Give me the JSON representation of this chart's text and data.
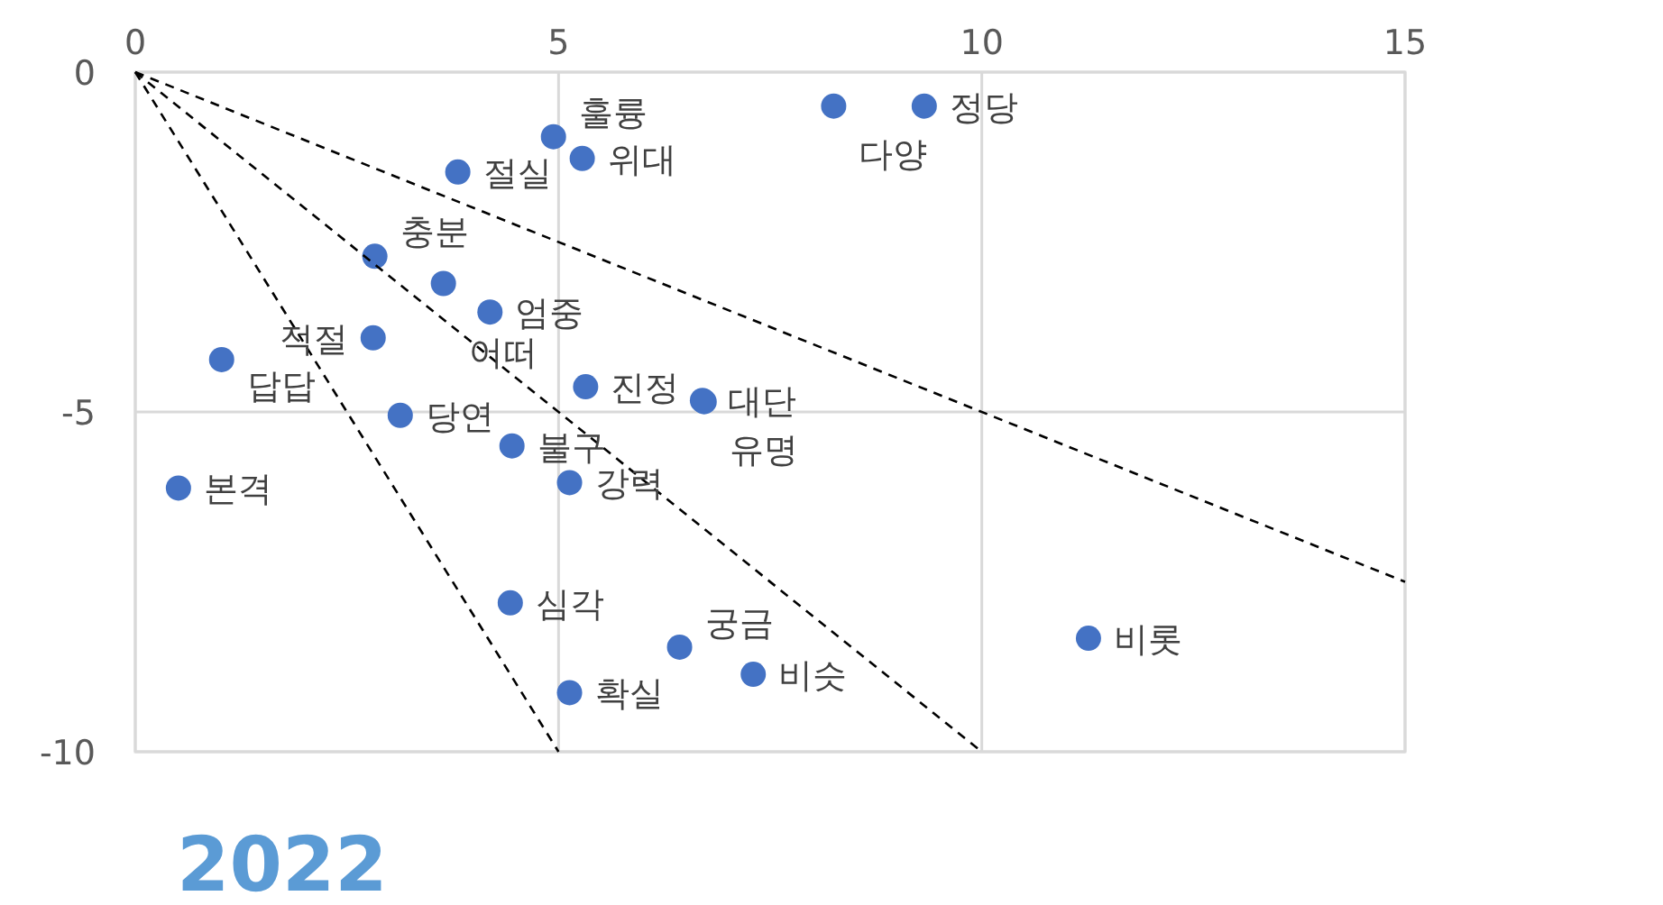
{
  "chart_data": {
    "type": "scatter",
    "title": "2022",
    "xlim": [
      0,
      15
    ],
    "ylim": [
      -10,
      0
    ],
    "xticks": [
      0,
      5,
      10,
      15
    ],
    "yticks": [
      -10,
      -5,
      0
    ],
    "grid": true,
    "marker": "circle",
    "series": [
      {
        "color": "#4472c4",
        "x": [
          8.25,
          9.32,
          4.94,
          5.28,
          3.81,
          2.83,
          3.64,
          4.19,
          2.81,
          1.02,
          5.32,
          6.7,
          6.72,
          3.13,
          4.45,
          5.13,
          0.51,
          4.43,
          6.43,
          7.3,
          5.13,
          11.26
        ],
        "values": [
          -0.5,
          -0.5,
          -0.95,
          -1.27,
          -1.47,
          -2.71,
          -3.11,
          -3.53,
          -3.91,
          -4.23,
          -4.63,
          -4.83,
          -4.85,
          -5.05,
          -5.5,
          -6.04,
          -6.12,
          -7.81,
          -8.46,
          -8.86,
          -9.13,
          -8.33
        ]
      },
      {
        "type": "line",
        "color": "#000000",
        "line_style": "dashed",
        "marker": "none",
        "x": [
          0,
          5
        ],
        "values": [
          0,
          -10
        ]
      },
      {
        "type": "line",
        "color": "#000000",
        "line_style": "dashed",
        "marker": "none",
        "x": [
          0,
          10
        ],
        "values": [
          0,
          -10
        ]
      },
      {
        "type": "line",
        "color": "#000000",
        "line_style": "dashed",
        "marker": "none",
        "x": [
          0,
          15
        ],
        "values": [
          0,
          -7.5
        ]
      }
    ],
    "annotations": [
      {
        "text": "다양",
        "x": 8.25,
        "y": -0.5
      },
      {
        "text": "정당",
        "x": 9.32,
        "y": -0.5
      },
      {
        "text": "훌륭",
        "x": 4.94,
        "y": -0.95
      },
      {
        "text": "위대",
        "x": 5.28,
        "y": -1.27
      },
      {
        "text": "절실",
        "x": 3.81,
        "y": -1.47
      },
      {
        "text": "충분",
        "x": 2.83,
        "y": -2.71
      },
      {
        "text": "어떠",
        "x": 3.64,
        "y": -3.11
      },
      {
        "text": "엄중",
        "x": 4.19,
        "y": -3.53
      },
      {
        "text": "적절",
        "x": 2.81,
        "y": -3.91
      },
      {
        "text": "답답",
        "x": 1.02,
        "y": -4.23
      },
      {
        "text": "진정",
        "x": 5.32,
        "y": -4.63
      },
      {
        "text": "대단",
        "x": 6.7,
        "y": -4.83
      },
      {
        "text": "유명",
        "x": 6.72,
        "y": -4.85
      },
      {
        "text": "당연",
        "x": 3.13,
        "y": -5.05
      },
      {
        "text": "불구",
        "x": 4.45,
        "y": -5.5
      },
      {
        "text": "강력",
        "x": 5.13,
        "y": -6.04
      },
      {
        "text": "본격",
        "x": 0.51,
        "y": -6.12
      },
      {
        "text": "심각",
        "x": 4.43,
        "y": -7.81
      },
      {
        "text": "궁금",
        "x": 6.43,
        "y": -8.46
      },
      {
        "text": "비슷",
        "x": 7.3,
        "y": -8.86
      },
      {
        "text": "확실",
        "x": 5.13,
        "y": -9.13
      },
      {
        "text": "비롯",
        "x": 11.26,
        "y": -8.33
      }
    ]
  }
}
